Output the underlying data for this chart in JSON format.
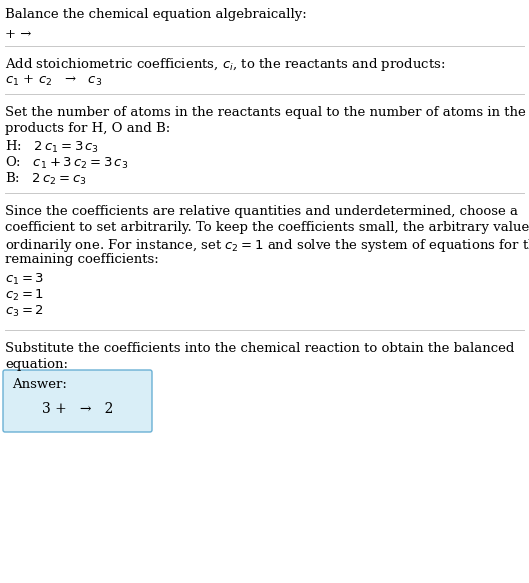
{
  "title": "Balance the chemical equation algebraically:",
  "sec0_line": "+ →",
  "sec1_header": "Add stoichiometric coefficients, $c_i$, to the reactants and products:",
  "sec1_equation": "$c_1$ + $c_2$   →   $c_3$",
  "sec2_header_l1": "Set the number of atoms in the reactants equal to the number of atoms in the",
  "sec2_header_l2": "products for H, O and B:",
  "sec2_lines": [
    "H:   $2\\,c_1 = 3\\,c_3$",
    "O:   $c_1 + 3\\,c_2 = 3\\,c_3$",
    "B:   $2\\,c_2 = c_3$"
  ],
  "sec3_header_l1": "Since the coefficients are relative quantities and underdetermined, choose a",
  "sec3_header_l2": "coefficient to set arbitrarily. To keep the coefficients small, the arbitrary value is",
  "sec3_header_l3": "ordinarily one. For instance, set $c_2 = 1$ and solve the system of equations for the",
  "sec3_header_l4": "remaining coefficients:",
  "sec3_lines": [
    "$c_1 = 3$",
    "$c_2 = 1$",
    "$c_3 = 2$"
  ],
  "sec4_header_l1": "Substitute the coefficients into the chemical reaction to obtain the balanced",
  "sec4_header_l2": "equation:",
  "answer_label": "Answer:",
  "answer_eq": "3 +   →   2",
  "answer_box_color": "#d9eef7",
  "answer_box_border": "#6ab0d4",
  "divider_color": "#c8c8c8",
  "text_color": "#000000",
  "bg_color": "#ffffff",
  "fs": 9.5
}
